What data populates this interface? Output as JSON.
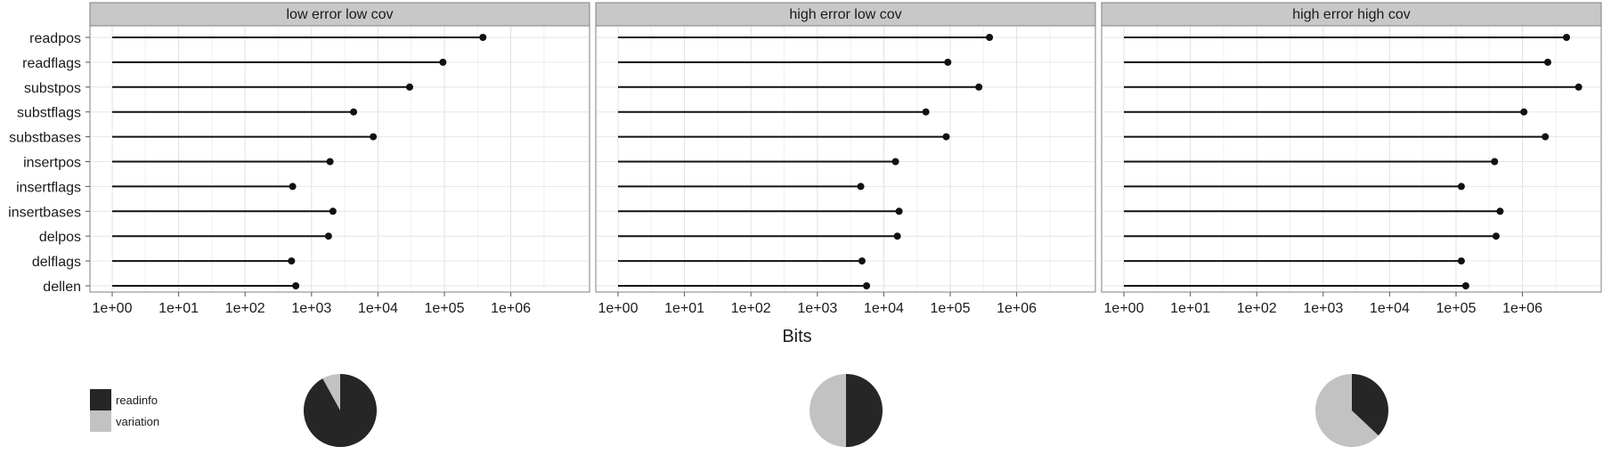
{
  "chart_data": {
    "type": "dot-plot",
    "x_label": "Bits",
    "x_scale": "log10",
    "x_ticks": [
      "1e+00",
      "1e+01",
      "1e+02",
      "1e+03",
      "1e+04",
      "1e+05",
      "1e+06"
    ],
    "categories": [
      "readpos",
      "readflags",
      "substpos",
      "substflags",
      "substbases",
      "insertpos",
      "insertflags",
      "insertbases",
      "delpos",
      "delflags",
      "dellen"
    ],
    "legend": {
      "items": [
        {
          "label": "readinfo",
          "color": "#262626"
        },
        {
          "label": "variation",
          "color": "#c2c2c2"
        }
      ]
    },
    "panels": [
      {
        "title": "low error low cov",
        "values": [
          380000,
          95000,
          30000,
          4300,
          8500,
          1900,
          520,
          2100,
          1800,
          500,
          580
        ],
        "pie": {
          "readinfo": 0.92,
          "variation": 0.08
        }
      },
      {
        "title": "high error low cov",
        "values": [
          390000,
          92000,
          270000,
          43000,
          87000,
          15000,
          4500,
          17000,
          16000,
          4700,
          5500
        ],
        "pie": {
          "readinfo": 0.5,
          "variation": 0.5
        }
      },
      {
        "title": "high error high cov",
        "values": [
          4600000,
          2400000,
          7000000,
          1050000,
          2200000,
          380000,
          120000,
          460000,
          400000,
          120000,
          140000
        ],
        "pie": {
          "readinfo": 0.37,
          "variation": 0.63
        }
      }
    ]
  }
}
